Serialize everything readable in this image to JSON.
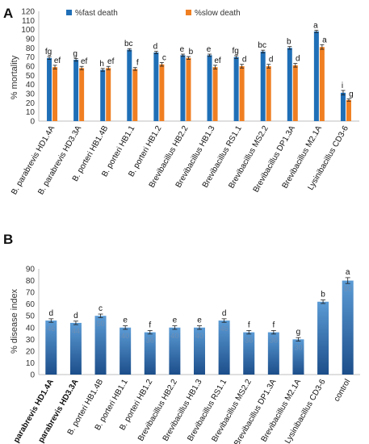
{
  "colors": {
    "fast": "#1f6fb7",
    "slow": "#f07f22",
    "disease_top": "#5b9bd5",
    "disease_bottom": "#1c4e8a",
    "error": "#222222",
    "grid": "#d9d9d9"
  },
  "chart_data": [
    {
      "panel_label": "A",
      "type": "bar",
      "ylabel": "% mortality",
      "ylim": [
        0,
        120
      ],
      "yticks": [
        0,
        10,
        20,
        30,
        40,
        50,
        60,
        70,
        80,
        90,
        100,
        110,
        120
      ],
      "grid": false,
      "legend_position": "top",
      "categories": [
        "B. parabrevis HD1.4A",
        "B. parabrevis HD3.3A",
        "B. porteri HB1.4B",
        "B. porteri HB1.1",
        "B. porteri HB1.2",
        "Brevibacillus HB2.2",
        "Brevibacillus HB1.3",
        "Brevibacillus RS1.1",
        "Brevibacillus MS2.2",
        "Brevibacillus DP1.3A",
        "Brevibacillus M2.1A",
        "Lysinibacillus CD3-6"
      ],
      "series": [
        {
          "name": "%fast death",
          "values": [
            69,
            67,
            56,
            78,
            75,
            72,
            72,
            70,
            76,
            80,
            98,
            31
          ],
          "errors": [
            1.5,
            1.5,
            1.5,
            1.2,
            1.2,
            1.2,
            1.2,
            1.5,
            1.5,
            1.5,
            1.2,
            2.5
          ],
          "letters": [
            "fg",
            "g",
            "h",
            "bc",
            "d",
            "e",
            "e",
            "fg",
            "bc",
            "b",
            "a",
            "i"
          ]
        },
        {
          "name": "%slow death",
          "values": [
            59,
            58,
            58,
            57,
            62,
            69,
            59,
            60,
            60,
            61,
            81,
            23
          ],
          "errors": [
            2,
            1.8,
            1.8,
            1.5,
            2,
            1.5,
            2,
            2,
            2,
            2,
            2.5,
            1.2
          ],
          "letters": [
            "ef",
            "ef",
            "ef",
            "f",
            "c",
            "b",
            "ef",
            "d",
            "d",
            "d",
            "a",
            "g"
          ]
        }
      ]
    },
    {
      "panel_label": "B",
      "type": "bar",
      "ylabel": "% disease index",
      "ylim": [
        0,
        90
      ],
      "yticks": [
        0,
        10,
        20,
        30,
        40,
        50,
        60,
        70,
        80,
        90
      ],
      "grid": false,
      "categories": [
        "B. parabrevis HD1.4A",
        "B. parabrevis HD3.3A",
        "B. porteri HB1.4B",
        "B. porteri HB1.1",
        "B. porteri HB1.2",
        "Brevibacillus HB2.2",
        "Brevibacillus HB1.3",
        "Brevibacillus RS1.1",
        "Brevibacillus MS2.2",
        "Brevibacillus DP1.3A",
        "Brevibacillus M2.1A",
        "Lysinibacillus CD3-6",
        "control"
      ],
      "bold_categories": [
        "B. parabrevis HD1.4A",
        "B. parabrevis HD3.3A"
      ],
      "values": [
        46,
        44,
        50,
        40,
        36,
        40,
        40,
        46,
        36,
        36,
        30,
        62,
        80
      ],
      "value_labels": [
        "46",
        "44",
        "50",
        "40",
        "36",
        "40",
        "40",
        "46",
        "36",
        "36",
        "30",
        "",
        "80"
      ],
      "errors": [
        1.5,
        1.5,
        1.5,
        1.5,
        1.5,
        1.5,
        1.5,
        1.5,
        1.5,
        1.5,
        1.5,
        1.5,
        2.5
      ],
      "letters": [
        "d",
        "d",
        "c",
        "e",
        "f",
        "e",
        "e",
        "d",
        "f",
        "f",
        "g",
        "b",
        "a"
      ]
    }
  ]
}
